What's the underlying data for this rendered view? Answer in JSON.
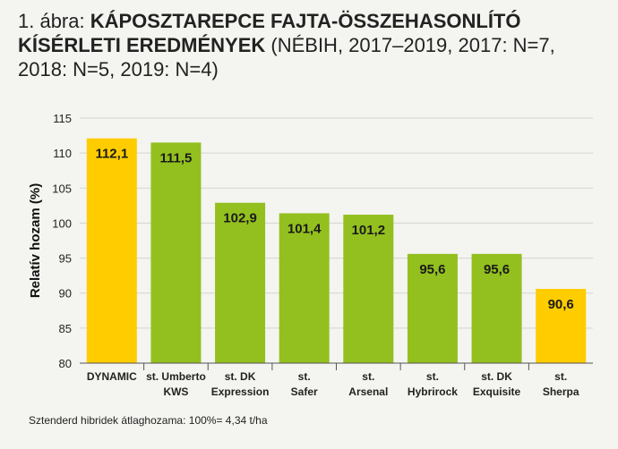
{
  "title": {
    "lead": "1. ábra: ",
    "bold": "KÁPOSZTAREPCE FAJTA-ÖSSZEHASONLÍTÓ KÍSÉRLETI EREDMÉNYEK",
    "rest": " (NÉBIH, 2017–2019, 2017: N=7, 2018: N=5, 2019: N=4)"
  },
  "footnote": "Sztenderd hibridek átlaghozama: 100%= 4,34 t/ha",
  "colors": {
    "green": "#93c01f",
    "yellow": "#ffcc00",
    "grid": "#d4d4cf"
  },
  "chart_data": {
    "type": "bar",
    "ylabel": "Relatív hozam (%)",
    "ylim": [
      80,
      115
    ],
    "yticks": [
      80,
      85,
      90,
      95,
      100,
      105,
      110,
      115
    ],
    "grid": true,
    "categories": [
      [
        "DYNAMIC"
      ],
      [
        "st. Umberto",
        "KWS"
      ],
      [
        "st. DK",
        "Expression"
      ],
      [
        "st.",
        "Safer"
      ],
      [
        "st.",
        "Arsenal"
      ],
      [
        "st.",
        "Hybrirock"
      ],
      [
        "st. DK",
        "Exquisite"
      ],
      [
        "st.",
        "Sherpa"
      ]
    ],
    "values": [
      112.1,
      111.5,
      102.9,
      101.4,
      101.2,
      95.6,
      95.6,
      90.6
    ],
    "value_labels": [
      "112,1",
      "111,5",
      "102,9",
      "101,4",
      "101,2",
      "95,6",
      "95,6",
      "90,6"
    ],
    "bar_colors": [
      "yellow",
      "green",
      "green",
      "green",
      "green",
      "green",
      "green",
      "yellow"
    ]
  }
}
